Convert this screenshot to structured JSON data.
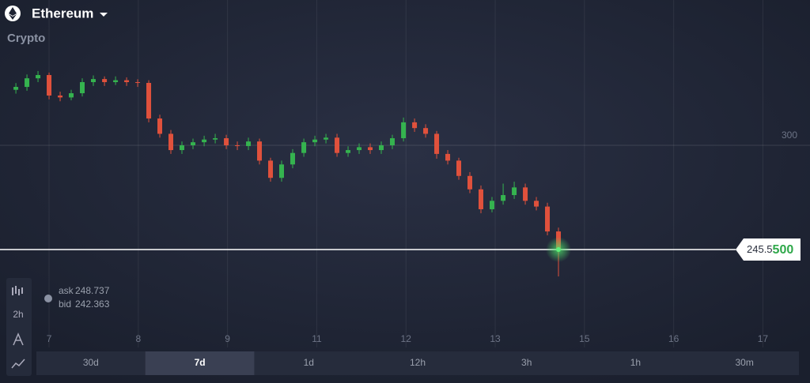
{
  "header": {
    "asset": "Ethereum",
    "category": "Crypto"
  },
  "toolbar": {
    "interval": "2h"
  },
  "quote": {
    "ask_label": "ask",
    "ask": 248.737,
    "bid_label": "bid",
    "bid": 242.363
  },
  "chart_data": {
    "type": "candlestick",
    "up_color": "#35b34f",
    "down_color": "#e0513c",
    "x": [
      -0.372,
      -0.248,
      -0.124,
      0.0,
      0.124,
      0.248,
      0.372,
      0.496,
      0.621,
      0.745,
      0.869,
      0.993,
      1.117,
      1.241,
      1.365,
      1.489,
      1.613,
      1.738,
      1.862,
      1.986,
      2.11,
      2.234,
      2.358,
      2.482,
      2.606,
      2.73,
      2.855,
      2.979,
      3.103,
      3.227,
      3.351,
      3.475,
      3.599,
      3.723,
      3.847,
      3.972,
      4.096,
      4.22,
      4.344,
      4.468,
      4.592,
      4.716,
      4.84,
      4.964,
      5.089,
      5.213,
      5.337,
      5.461,
      5.585,
      5.709
    ],
    "open": [
      329,
      330.5,
      335,
      336.7,
      326,
      325,
      327.2,
      333,
      334.6,
      333,
      334,
      333,
      332.6,
      314,
      306,
      297.5,
      300,
      301.6,
      303,
      303.7,
      300,
      299.6,
      302,
      292,
      283,
      290,
      296,
      301.6,
      303,
      304,
      296,
      297.5,
      299,
      297.5,
      300,
      303.7,
      312,
      309,
      306,
      295.5,
      292,
      284,
      277,
      266.6,
      271,
      274,
      278,
      271,
      268,
      255
    ],
    "high": [
      332.5,
      337,
      338.8,
      338,
      328,
      329,
      335,
      336.5,
      336,
      336,
      335.5,
      334.5,
      334,
      316,
      308,
      302,
      303.5,
      305,
      306,
      305.5,
      302,
      304,
      303.5,
      293.5,
      292,
      298,
      303.5,
      305,
      306,
      306,
      299.5,
      301,
      301,
      302,
      305.5,
      314.5,
      314,
      311,
      307.5,
      297.5,
      293.5,
      286,
      279,
      273,
      280,
      281,
      280,
      273,
      270,
      257
    ],
    "low": [
      327,
      328.5,
      333,
      324,
      323,
      323.5,
      325.5,
      331,
      331,
      331.5,
      331,
      330.5,
      312,
      304,
      295.5,
      295.5,
      298,
      299.5,
      301,
      298,
      297.5,
      297.5,
      290,
      281,
      281,
      288,
      294,
      299.5,
      301,
      294,
      294,
      295.5,
      295.5,
      295.5,
      298,
      302,
      307,
      304,
      293,
      290,
      282,
      275,
      264.5,
      265,
      269,
      272,
      269,
      266,
      253,
      231.5
    ],
    "close": [
      330.5,
      335,
      336.7,
      326,
      325,
      327.2,
      333,
      334.6,
      333,
      334,
      333,
      332.6,
      314,
      306,
      297.5,
      300,
      301.6,
      303,
      303.7,
      300,
      299.6,
      302,
      292,
      283,
      290,
      296,
      301.6,
      303,
      304,
      296,
      297.5,
      299,
      297.5,
      300,
      303.7,
      312,
      309,
      306,
      295.5,
      292,
      284,
      277,
      266.6,
      271,
      274,
      278,
      271,
      268,
      255,
      245.55
    ],
    "ylim": [
      194.4,
      375.9
    ],
    "yticks": [
      300
    ],
    "xlim": [
      -0.55,
      8.528
    ],
    "xticks": [
      {
        "value": 0,
        "label": "7"
      },
      {
        "value": 1,
        "label": "8"
      },
      {
        "value": 2,
        "label": "9"
      },
      {
        "value": 3,
        "label": "11"
      },
      {
        "value": 4,
        "label": "12"
      },
      {
        "value": 5,
        "label": "13"
      },
      {
        "value": 6,
        "label": "15"
      },
      {
        "value": 7,
        "label": "16"
      },
      {
        "value": 8,
        "label": "17"
      }
    ],
    "grid": true,
    "current_price": 245.55,
    "current_price_label": {
      "main": "245.5",
      "tail": "500"
    }
  },
  "timeframes": {
    "options": [
      "30d",
      "7d",
      "1d",
      "12h",
      "3h",
      "1h",
      "30m"
    ],
    "selected": 1
  }
}
